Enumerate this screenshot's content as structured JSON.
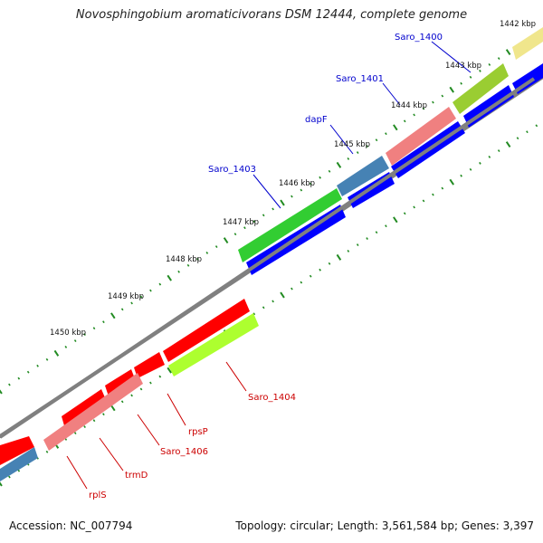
{
  "title": "Novosphingobium aromaticivorans DSM 12444, complete genome",
  "footer": {
    "accession": "Accession: NC_007794",
    "summary": "Topology: circular; Length: 3,561,584 bp; Genes: 3,397"
  },
  "ticks": [
    "1442 kbp",
    "1443 kbp",
    "1444 kbp",
    "1445 kbp",
    "1446 kbp",
    "1447 kbp",
    "1448 kbp",
    "1449 kbp",
    "1450 kbp"
  ],
  "forward_genes": [
    {
      "name": "Saro_1400",
      "color": "#f0e68c"
    },
    {
      "name": "Saro_1401",
      "color": "#9acd32"
    },
    {
      "name": "dapF",
      "color": "#f08080"
    },
    {
      "name": "Saro_1403",
      "color": "#4682b4"
    },
    {
      "name": "",
      "color": "#32cd32"
    }
  ],
  "reverse_genes": [
    {
      "name": "Saro_1404",
      "color": "#adff2f"
    },
    {
      "name": "rpsP",
      "color": "#ff0000"
    },
    {
      "name": "Saro_1406",
      "color": "#f08080"
    },
    {
      "name": "trmD",
      "color": "#ff0000"
    },
    {
      "name": "rplS",
      "color": "#ff0000"
    }
  ],
  "colors": {
    "backbone": "#808080",
    "tick": "#228b22",
    "cds_blue": "#0000ff",
    "forward_label": "#0000cd",
    "reverse_label": "#cc0000"
  }
}
